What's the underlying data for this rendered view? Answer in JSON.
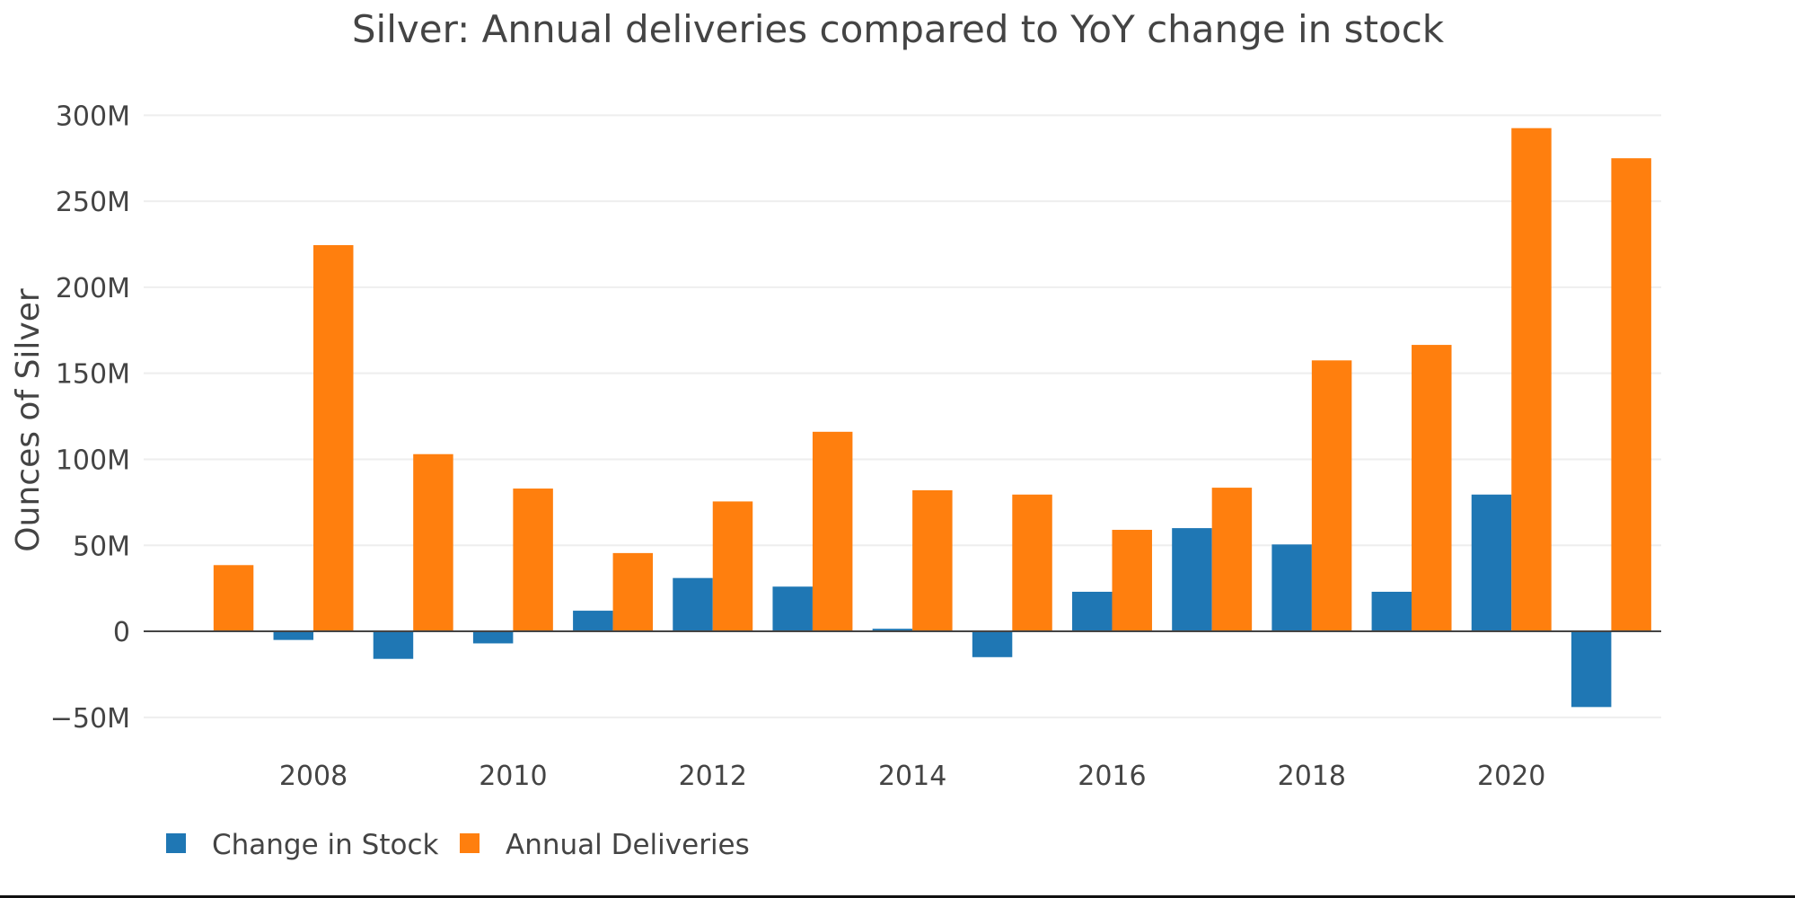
{
  "chart_data": {
    "type": "bar",
    "title": "Silver: Annual deliveries compared to YoY change in stock",
    "ylabel": "Ounces of Silver",
    "xlabel": "",
    "x": [
      2007,
      2008,
      2009,
      2010,
      2011,
      2012,
      2013,
      2014,
      2015,
      2016,
      2017,
      2018,
      2019,
      2020,
      2021
    ],
    "x_ticks": [
      2008,
      2010,
      2012,
      2014,
      2016,
      2018,
      2020
    ],
    "x_tick_labels": [
      "2008",
      "2010",
      "2012",
      "2014",
      "2016",
      "2018",
      "2020"
    ],
    "xlim": [
      2006.3,
      2021.5
    ],
    "ylim": [
      -60000000,
      320000000
    ],
    "y_ticks": [
      -50000000,
      0,
      50000000,
      100000000,
      150000000,
      200000000,
      250000000,
      300000000
    ],
    "y_tick_labels": [
      "−50M",
      "0",
      "50M",
      "100M",
      "150M",
      "200M",
      "250M",
      "300M"
    ],
    "grid": true,
    "legend_position": "bottom-left",
    "series": [
      {
        "name": "Change in Stock",
        "color": "#1f77b4",
        "values": [
          null,
          -5000000,
          -16000000,
          -7000000,
          12000000,
          31000000,
          26000000,
          1500000,
          -15000000,
          23000000,
          60000000,
          50500000,
          23000000,
          79500000,
          -44000000
        ]
      },
      {
        "name": "Annual Deliveries",
        "color": "#ff7f0e",
        "values": [
          38500000,
          224500000,
          103000000,
          83000000,
          45500000,
          75500000,
          116000000,
          82000000,
          79500000,
          59000000,
          83500000,
          157500000,
          166500000,
          292500000,
          275000000
        ]
      }
    ]
  }
}
